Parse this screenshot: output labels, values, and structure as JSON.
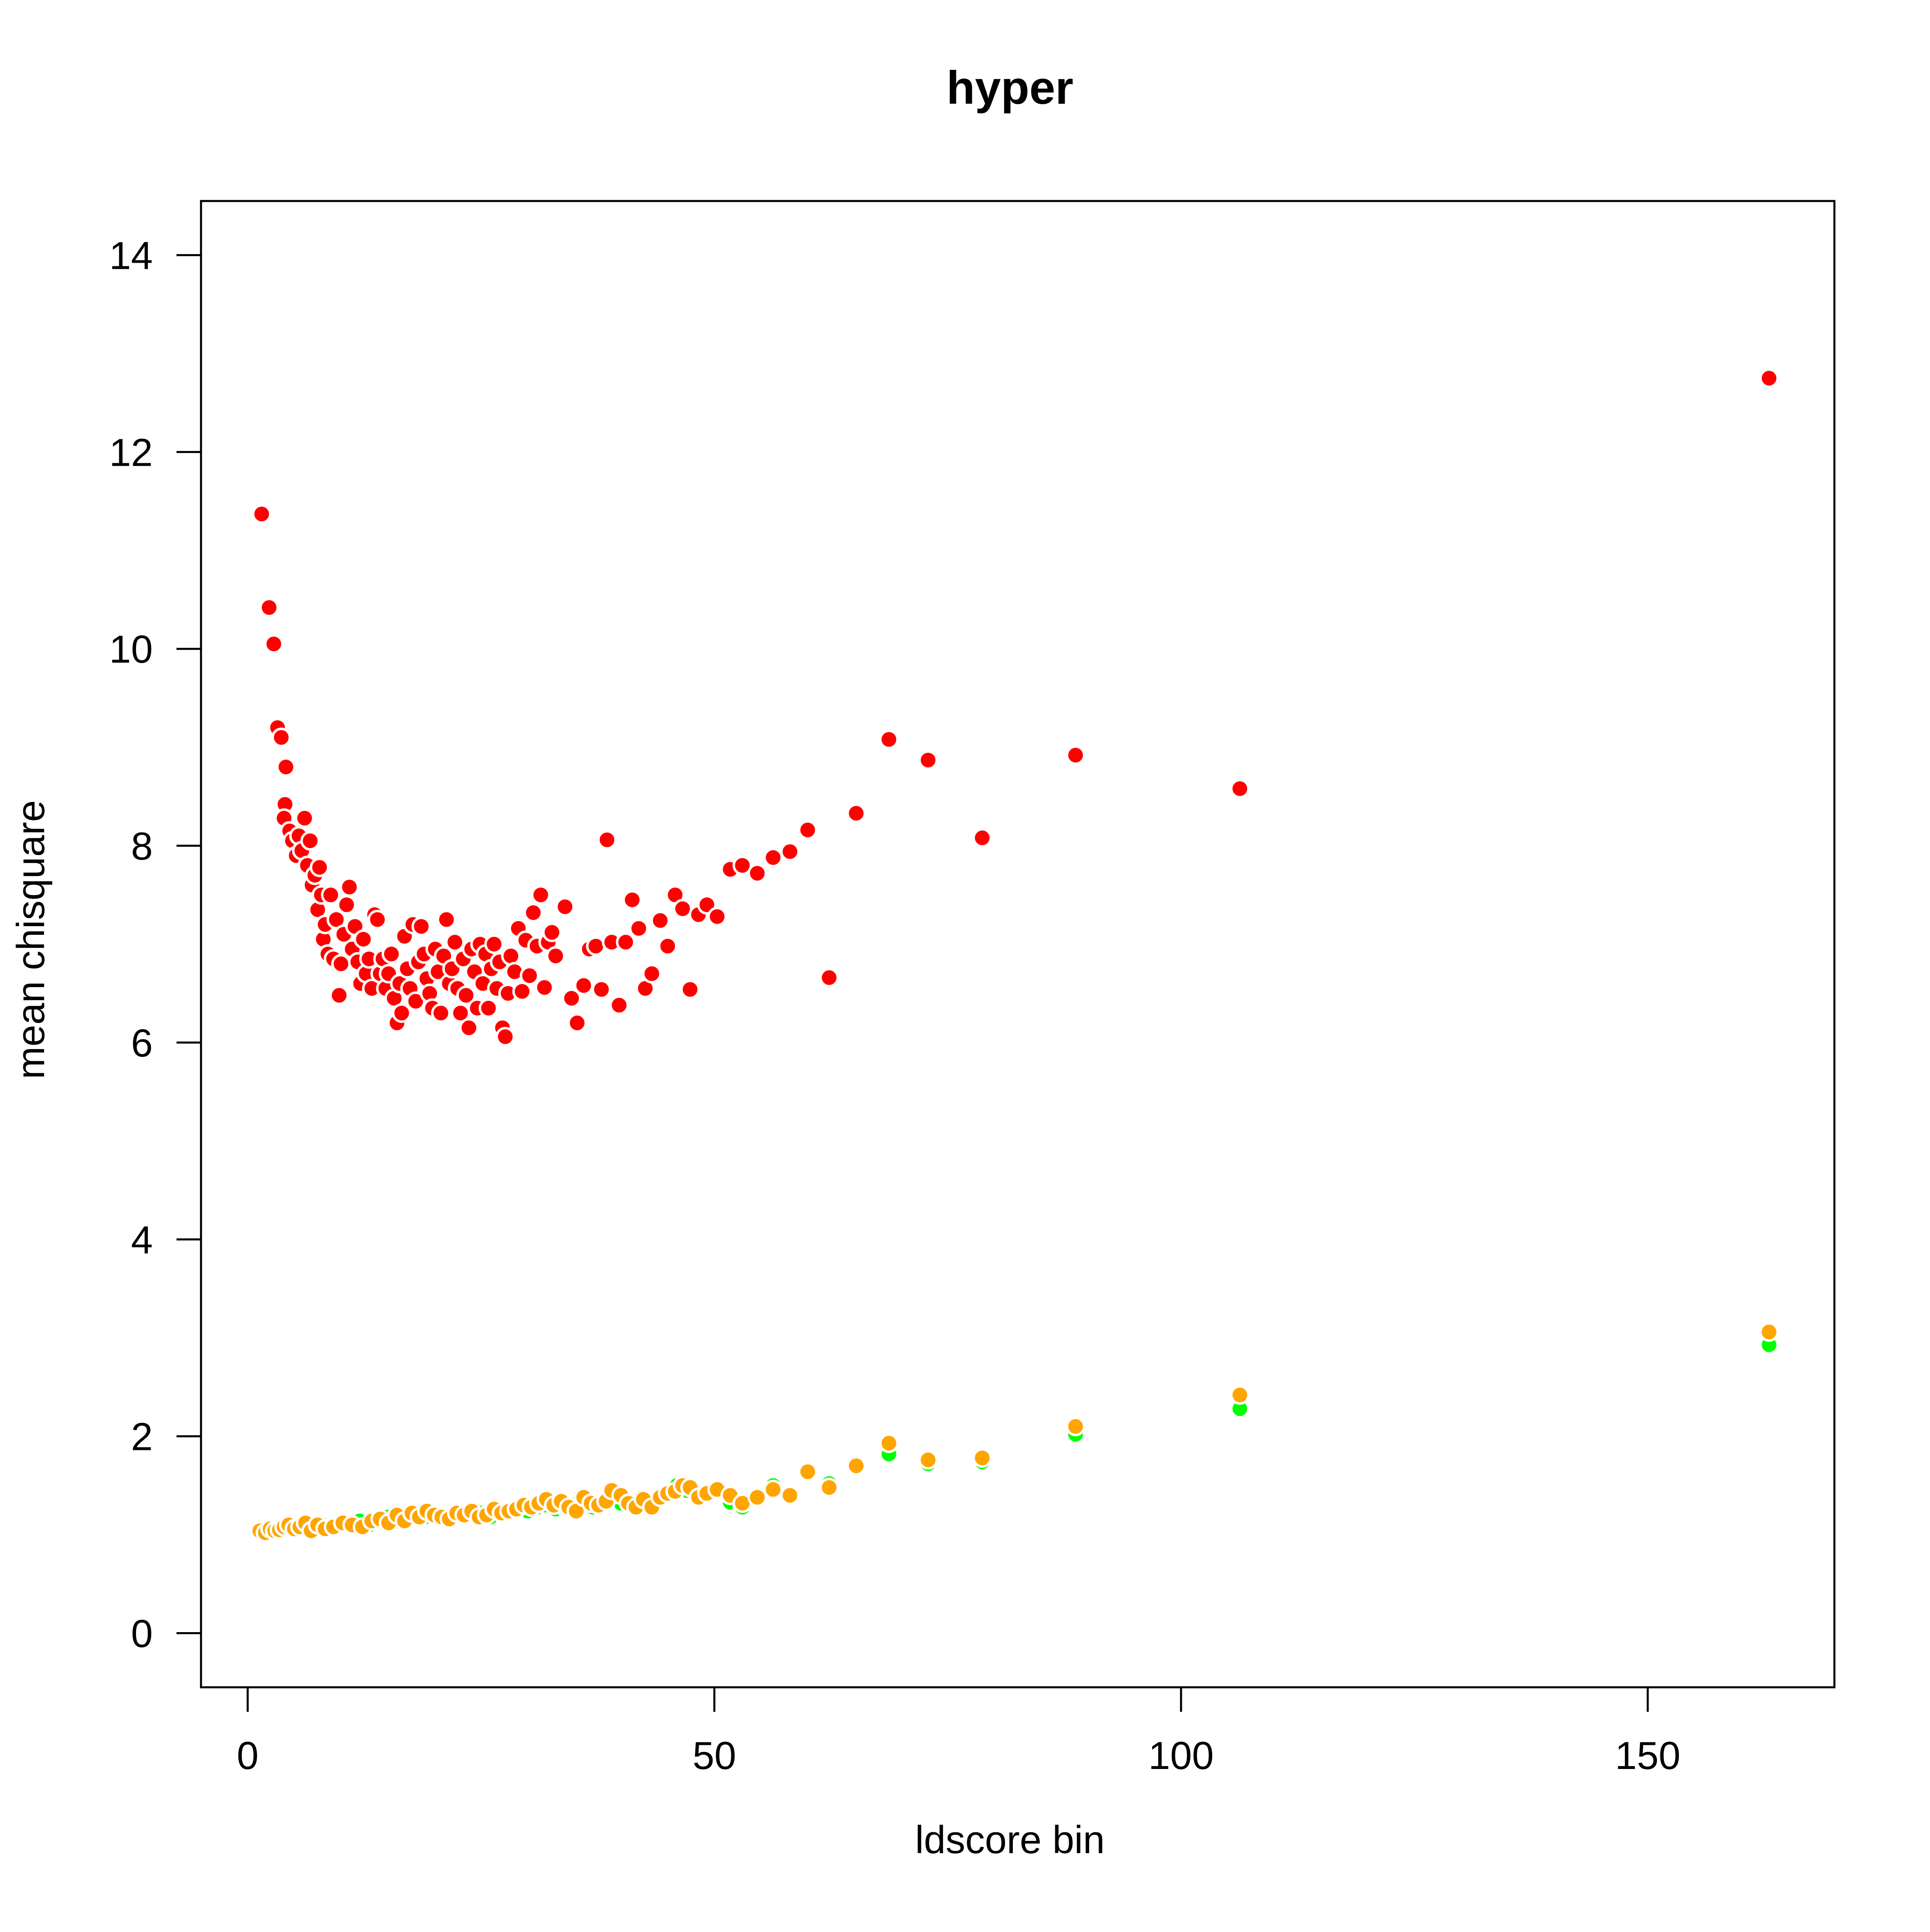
{
  "chart_data": {
    "type": "scatter",
    "title": "hyper",
    "xlabel": "ldscore bin",
    "ylabel": "mean chisquare",
    "xlim": [
      -5,
      170
    ],
    "ylim": [
      -0.55,
      14.55
    ],
    "x_ticks": [
      0,
      50,
      100,
      150
    ],
    "y_ticks": [
      0,
      2,
      4,
      6,
      8,
      10,
      12,
      14
    ],
    "grid": false,
    "legend": "none",
    "series": [
      {
        "color": "#ff0000",
        "points": [
          [
            1.5,
            11.37
          ],
          [
            2.3,
            10.42
          ],
          [
            2.8,
            10.05
          ],
          [
            3.2,
            9.2
          ],
          [
            3.6,
            9.1
          ],
          [
            4.1,
            8.8
          ],
          [
            4.0,
            8.42
          ],
          [
            3.9,
            8.28
          ],
          [
            4.5,
            8.15
          ],
          [
            4.8,
            8.05
          ],
          [
            5.2,
            7.9
          ],
          [
            5.5,
            8.1
          ],
          [
            5.8,
            7.95
          ],
          [
            6.1,
            8.28
          ],
          [
            6.4,
            7.8
          ],
          [
            6.7,
            8.05
          ],
          [
            6.9,
            7.6
          ],
          [
            7.2,
            7.7
          ],
          [
            7.5,
            7.35
          ],
          [
            7.7,
            7.78
          ],
          [
            7.9,
            7.5
          ],
          [
            8.1,
            7.05
          ],
          [
            8.3,
            7.2
          ],
          [
            8.6,
            6.9
          ],
          [
            8.9,
            7.5
          ],
          [
            9.2,
            6.85
          ],
          [
            9.5,
            7.25
          ],
          [
            9.8,
            6.48
          ],
          [
            10.0,
            6.8
          ],
          [
            10.3,
            7.1
          ],
          [
            10.6,
            7.4
          ],
          [
            10.9,
            7.58
          ],
          [
            11.2,
            6.95
          ],
          [
            11.5,
            7.18
          ],
          [
            11.8,
            6.82
          ],
          [
            12.1,
            6.6
          ],
          [
            12.4,
            7.05
          ],
          [
            12.7,
            6.7
          ],
          [
            13.0,
            6.85
          ],
          [
            13.3,
            6.55
          ],
          [
            13.6,
            7.3
          ],
          [
            13.9,
            7.25
          ],
          [
            14.2,
            6.7
          ],
          [
            14.5,
            6.85
          ],
          [
            14.8,
            6.55
          ],
          [
            15.1,
            6.7
          ],
          [
            15.4,
            6.9
          ],
          [
            15.7,
            6.45
          ],
          [
            16.0,
            6.2
          ],
          [
            16.3,
            6.6
          ],
          [
            16.5,
            6.3
          ],
          [
            16.8,
            7.08
          ],
          [
            17.1,
            6.75
          ],
          [
            17.4,
            6.55
          ],
          [
            17.7,
            7.2
          ],
          [
            18.0,
            6.42
          ],
          [
            18.3,
            6.82
          ],
          [
            18.6,
            7.18
          ],
          [
            18.9,
            6.9
          ],
          [
            19.2,
            6.65
          ],
          [
            19.5,
            6.5
          ],
          [
            19.8,
            6.35
          ],
          [
            20.1,
            6.95
          ],
          [
            20.4,
            6.72
          ],
          [
            20.7,
            6.3
          ],
          [
            21.0,
            6.88
          ],
          [
            21.3,
            7.25
          ],
          [
            21.6,
            6.6
          ],
          [
            21.9,
            6.75
          ],
          [
            22.2,
            7.02
          ],
          [
            22.5,
            6.55
          ],
          [
            22.8,
            6.3
          ],
          [
            23.1,
            6.85
          ],
          [
            23.4,
            6.48
          ],
          [
            23.7,
            6.15
          ],
          [
            24.0,
            6.95
          ],
          [
            24.3,
            6.72
          ],
          [
            24.6,
            6.35
          ],
          [
            24.9,
            7.0
          ],
          [
            25.2,
            6.6
          ],
          [
            25.5,
            6.9
          ],
          [
            25.8,
            6.35
          ],
          [
            26.1,
            6.75
          ],
          [
            26.4,
            7.0
          ],
          [
            26.7,
            6.55
          ],
          [
            27.0,
            6.82
          ],
          [
            27.3,
            6.15
          ],
          [
            27.6,
            6.06
          ],
          [
            27.9,
            6.5
          ],
          [
            28.2,
            6.88
          ],
          [
            28.6,
            6.72
          ],
          [
            29.0,
            7.16
          ],
          [
            29.4,
            6.52
          ],
          [
            29.8,
            7.04
          ],
          [
            30.2,
            6.68
          ],
          [
            30.6,
            7.32
          ],
          [
            31.0,
            6.98
          ],
          [
            31.4,
            7.5
          ],
          [
            31.8,
            6.56
          ],
          [
            32.2,
            7.02
          ],
          [
            32.6,
            7.12
          ],
          [
            33.0,
            6.88
          ],
          [
            34.0,
            7.38
          ],
          [
            34.7,
            6.45
          ],
          [
            35.3,
            6.2
          ],
          [
            36.0,
            6.58
          ],
          [
            36.6,
            6.95
          ],
          [
            37.3,
            6.98
          ],
          [
            37.9,
            6.54
          ],
          [
            38.5,
            8.06
          ],
          [
            39.0,
            7.02
          ],
          [
            39.8,
            6.38
          ],
          [
            40.5,
            7.02
          ],
          [
            41.2,
            7.45
          ],
          [
            41.9,
            7.16
          ],
          [
            42.6,
            6.55
          ],
          [
            43.3,
            6.7
          ],
          [
            44.2,
            7.24
          ],
          [
            45.0,
            6.98
          ],
          [
            45.8,
            7.5
          ],
          [
            46.6,
            7.36
          ],
          [
            47.4,
            6.54
          ],
          [
            48.3,
            7.3
          ],
          [
            49.2,
            7.4
          ],
          [
            50.3,
            7.28
          ],
          [
            51.7,
            7.76
          ],
          [
            53.0,
            7.8
          ],
          [
            54.6,
            7.72
          ],
          [
            56.3,
            7.88
          ],
          [
            58.1,
            7.94
          ],
          [
            60.0,
            8.16
          ],
          [
            62.3,
            6.66
          ],
          [
            65.2,
            8.33
          ],
          [
            68.7,
            9.08
          ],
          [
            72.9,
            8.87
          ],
          [
            78.7,
            8.08
          ],
          [
            88.7,
            8.92
          ],
          [
            106.3,
            8.58
          ],
          [
            163.0,
            12.75
          ]
        ]
      },
      {
        "color": "#00ff00",
        "points": [
          [
            1.5,
            1.02
          ],
          [
            2.3,
            1.03
          ],
          [
            3.0,
            1.05
          ],
          [
            3.8,
            1.06
          ],
          [
            4.6,
            1.08
          ],
          [
            5.4,
            1.06
          ],
          [
            6.2,
            1.1
          ],
          [
            7.0,
            1.08
          ],
          [
            8.0,
            1.1
          ],
          [
            9.0,
            1.08
          ],
          [
            10.0,
            1.1
          ],
          [
            11.0,
            1.12
          ],
          [
            12.0,
            1.14
          ],
          [
            13.0,
            1.1
          ],
          [
            14.0,
            1.15
          ],
          [
            15.0,
            1.18
          ],
          [
            16.0,
            1.14
          ],
          [
            17.0,
            1.18
          ],
          [
            18.0,
            1.2
          ],
          [
            19.0,
            1.18
          ],
          [
            20.0,
            1.2
          ],
          [
            21.0,
            1.16
          ],
          [
            22.0,
            1.2
          ],
          [
            23.0,
            1.22
          ],
          [
            24.0,
            1.2
          ],
          [
            25.0,
            1.22
          ],
          [
            26.0,
            1.18
          ],
          [
            27.0,
            1.24
          ],
          [
            28.0,
            1.22
          ],
          [
            29.0,
            1.26
          ],
          [
            30.0,
            1.24
          ],
          [
            31.0,
            1.28
          ],
          [
            32.0,
            1.3
          ],
          [
            33.0,
            1.26
          ],
          [
            34.0,
            1.28
          ],
          [
            35.0,
            1.3
          ],
          [
            36.0,
            1.32
          ],
          [
            37.0,
            1.28
          ],
          [
            38.0,
            1.3
          ],
          [
            39.0,
            1.35
          ],
          [
            40.0,
            1.32
          ],
          [
            41.0,
            1.3
          ],
          [
            42.0,
            1.3
          ],
          [
            43.0,
            1.28
          ],
          [
            44.2,
            1.36
          ],
          [
            45.0,
            1.4
          ],
          [
            46.0,
            1.5
          ],
          [
            47.0,
            1.45
          ],
          [
            48.3,
            1.36
          ],
          [
            49.2,
            1.42
          ],
          [
            50.3,
            1.44
          ],
          [
            51.7,
            1.33
          ],
          [
            53.0,
            1.28
          ],
          [
            54.6,
            1.38
          ],
          [
            56.3,
            1.5
          ],
          [
            58.1,
            1.38
          ],
          [
            60.0,
            1.62
          ],
          [
            62.3,
            1.52
          ],
          [
            65.2,
            1.68
          ],
          [
            68.7,
            1.82
          ],
          [
            72.9,
            1.72
          ],
          [
            78.7,
            1.74
          ],
          [
            88.7,
            2.02
          ],
          [
            106.3,
            2.28
          ],
          [
            163.0,
            2.93
          ]
        ]
      },
      {
        "color": "#ffa500",
        "points": [
          [
            1.3,
            1.04
          ],
          [
            1.9,
            1.02
          ],
          [
            2.4,
            1.06
          ],
          [
            2.9,
            1.04
          ],
          [
            3.4,
            1.05
          ],
          [
            3.9,
            1.08
          ],
          [
            4.4,
            1.1
          ],
          [
            5.0,
            1.06
          ],
          [
            5.6,
            1.08
          ],
          [
            6.2,
            1.12
          ],
          [
            6.8,
            1.04
          ],
          [
            7.5,
            1.1
          ],
          [
            8.3,
            1.06
          ],
          [
            9.2,
            1.08
          ],
          [
            10.2,
            1.12
          ],
          [
            11.2,
            1.1
          ],
          [
            12.3,
            1.08
          ],
          [
            13.3,
            1.14
          ],
          [
            14.2,
            1.16
          ],
          [
            15.1,
            1.12
          ],
          [
            16.0,
            1.2
          ],
          [
            16.8,
            1.14
          ],
          [
            17.6,
            1.22
          ],
          [
            18.4,
            1.18
          ],
          [
            19.2,
            1.24
          ],
          [
            20.0,
            1.2
          ],
          [
            20.8,
            1.18
          ],
          [
            21.6,
            1.16
          ],
          [
            22.4,
            1.22
          ],
          [
            23.2,
            1.2
          ],
          [
            24.0,
            1.24
          ],
          [
            24.8,
            1.18
          ],
          [
            25.6,
            1.2
          ],
          [
            26.4,
            1.26
          ],
          [
            27.2,
            1.22
          ],
          [
            28.0,
            1.24
          ],
          [
            28.8,
            1.26
          ],
          [
            29.6,
            1.3
          ],
          [
            30.4,
            1.28
          ],
          [
            31.2,
            1.32
          ],
          [
            32.0,
            1.36
          ],
          [
            32.8,
            1.3
          ],
          [
            33.6,
            1.34
          ],
          [
            34.4,
            1.28
          ],
          [
            35.2,
            1.24
          ],
          [
            36.0,
            1.38
          ],
          [
            36.8,
            1.32
          ],
          [
            37.6,
            1.3
          ],
          [
            38.4,
            1.34
          ],
          [
            39.0,
            1.45
          ],
          [
            40.0,
            1.4
          ],
          [
            40.8,
            1.32
          ],
          [
            41.6,
            1.28
          ],
          [
            42.4,
            1.36
          ],
          [
            43.3,
            1.28
          ],
          [
            44.2,
            1.38
          ],
          [
            45.0,
            1.42
          ],
          [
            45.8,
            1.44
          ],
          [
            46.6,
            1.5
          ],
          [
            47.4,
            1.48
          ],
          [
            48.3,
            1.38
          ],
          [
            49.2,
            1.42
          ],
          [
            50.3,
            1.46
          ],
          [
            51.7,
            1.4
          ],
          [
            53.0,
            1.32
          ],
          [
            54.6,
            1.38
          ],
          [
            56.3,
            1.46
          ],
          [
            58.1,
            1.4
          ],
          [
            60.0,
            1.64
          ],
          [
            62.3,
            1.48
          ],
          [
            65.2,
            1.7
          ],
          [
            68.7,
            1.93
          ],
          [
            72.9,
            1.76
          ],
          [
            78.7,
            1.78
          ],
          [
            88.7,
            2.1
          ],
          [
            106.3,
            2.42
          ],
          [
            163.0,
            3.06
          ]
        ]
      }
    ]
  }
}
